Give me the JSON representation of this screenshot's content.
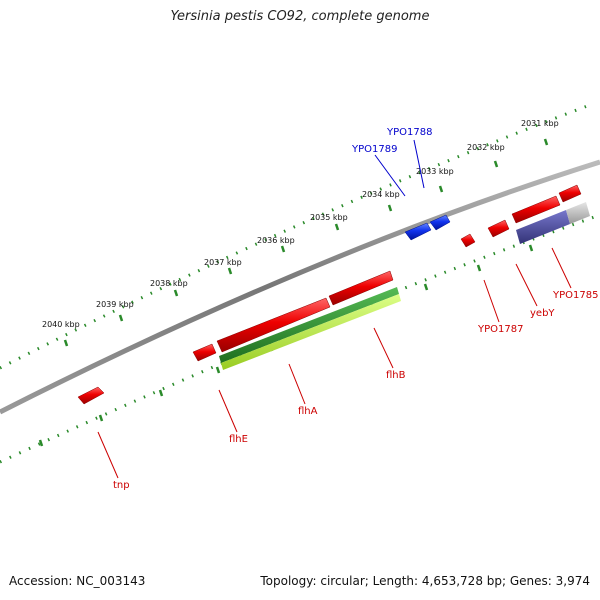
{
  "title": "Yersinia pestis CO92, complete genome",
  "accession": "Accession: NC_003143",
  "topology": "Topology: circular; Length: 4,653,728 bp; Genes: 3,974",
  "colors": {
    "backbone": "#888888",
    "ticks": "#2a8a2a",
    "gene_red": "#ee0000",
    "gene_blue": "#1133ee",
    "track_green": "#2f8f2f",
    "track_lime": "#bbee44",
    "track_purple": "#444499",
    "track_grey": "#bbbbbb",
    "label_red": "#cc0000",
    "label_blue": "#0000cc"
  },
  "kbp_labels": [
    "2031 kbp",
    "2032 kbp",
    "2033 kbp",
    "2034 kbp",
    "2035 kbp",
    "2036 kbp",
    "2037 kbp",
    "2038 kbp",
    "2039 kbp",
    "2040 kbp"
  ],
  "genes": {
    "tnp": "tnp",
    "flhE": "flhE",
    "flhA": "flhA",
    "flhB": "flhB",
    "YPO1787": "YPO1787",
    "yebY": "yebY",
    "YPO1785": "YPO1785",
    "YPO1789": "YPO1789",
    "YPO1788": "YPO1788"
  }
}
